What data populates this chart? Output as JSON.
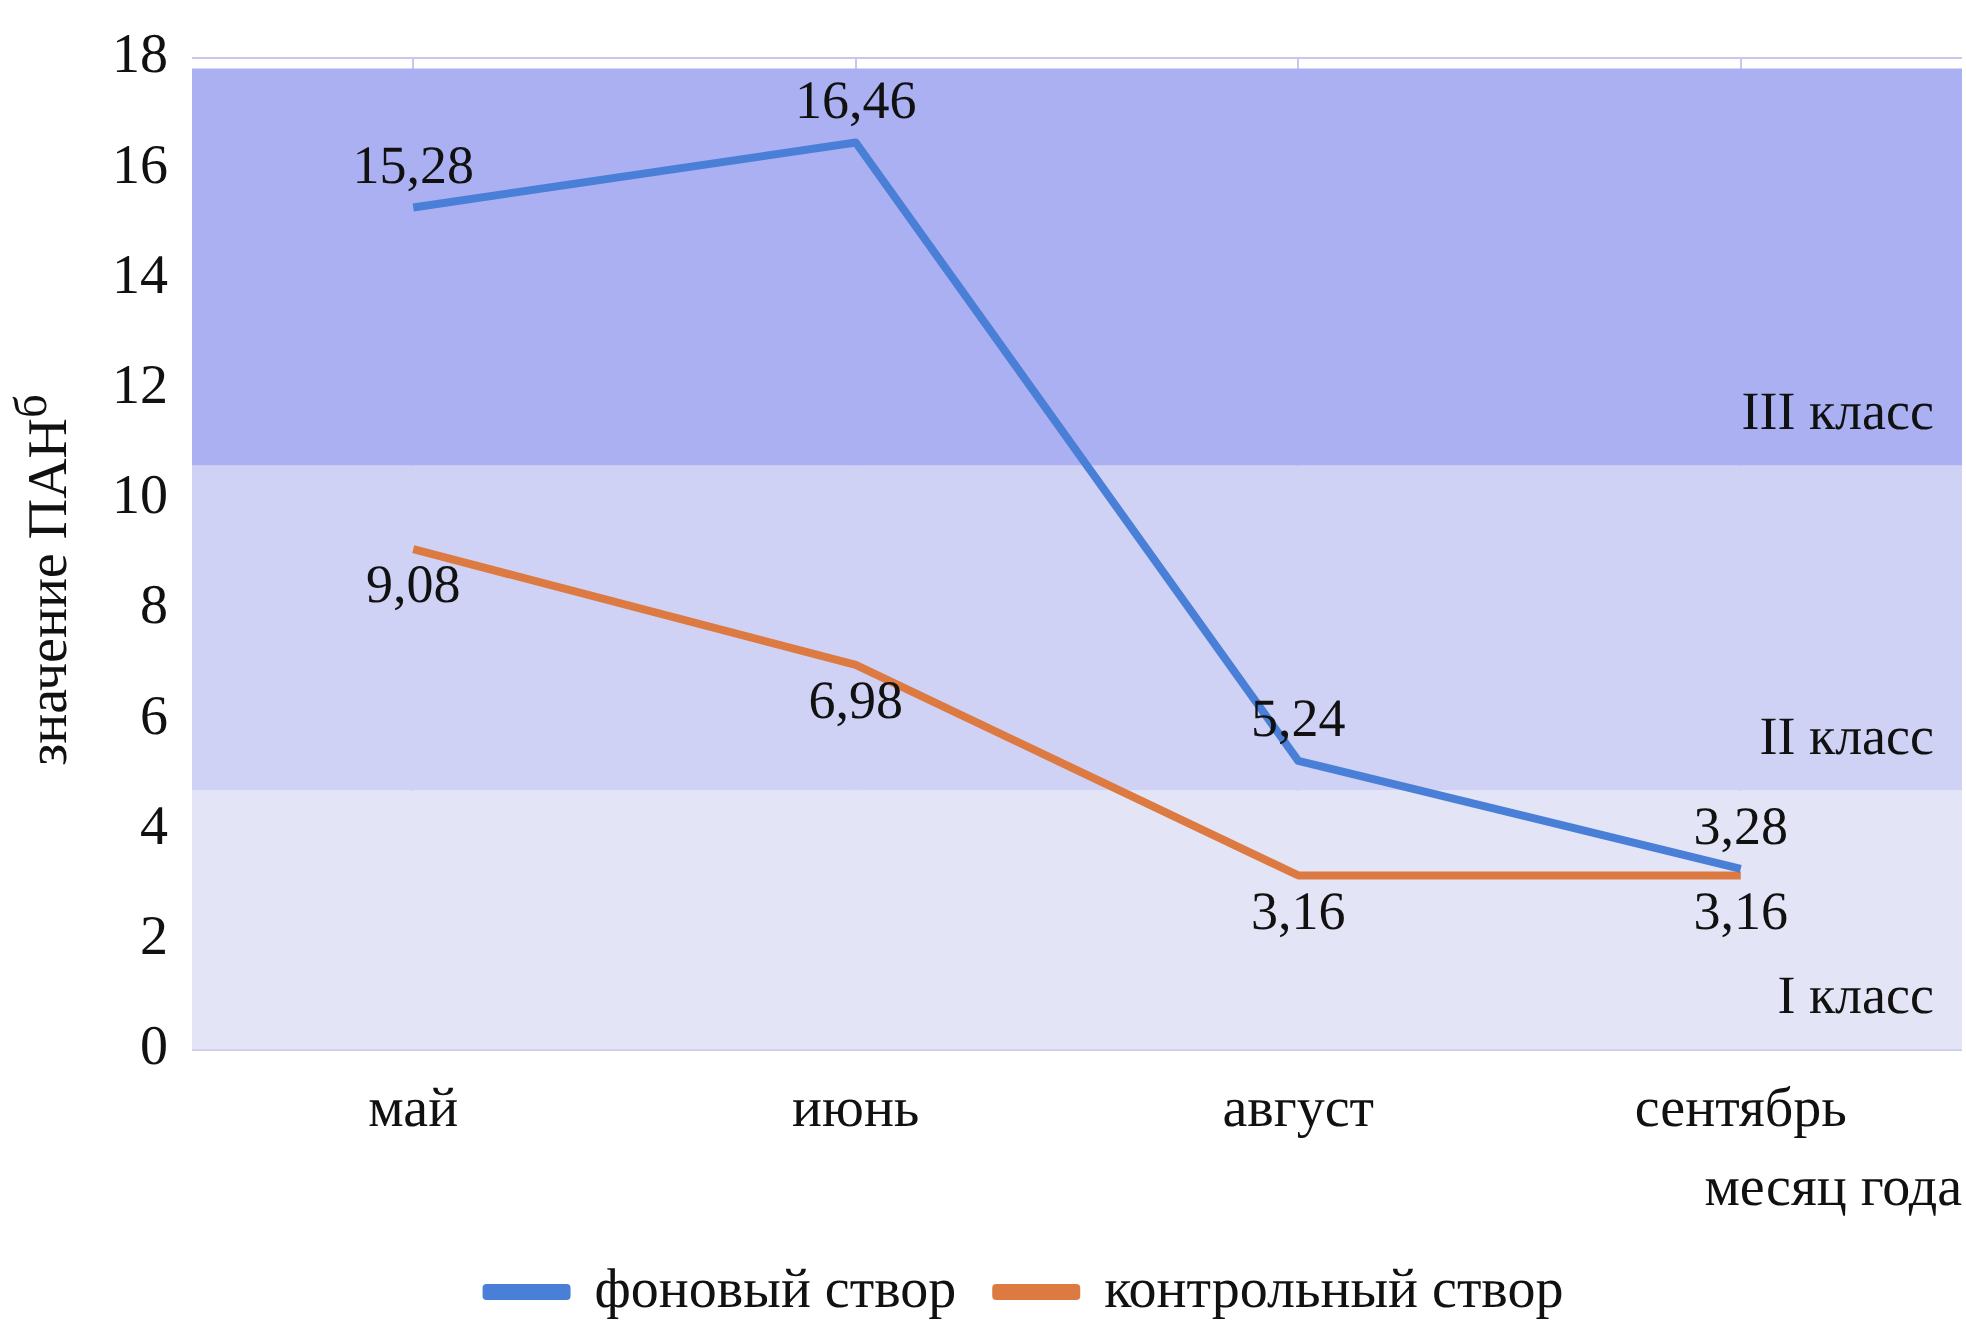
{
  "chart_data": {
    "type": "line",
    "ylabel": "значение ПАН$^{б}$",
    "xlabel": "месяц года",
    "categories": [
      "май",
      "июнь",
      "август",
      "сентябрь"
    ],
    "series": [
      {
        "name": "фоновый створ",
        "color": "#4a7fd8",
        "values": [
          15.28,
          16.46,
          5.24,
          3.28
        ],
        "value_labels": [
          "15,28",
          "16,46",
          "5,24",
          "3,28"
        ]
      },
      {
        "name": "контрольный створ",
        "color": "#dc7a42",
        "values": [
          9.08,
          6.98,
          3.16,
          3.16
        ],
        "value_labels": [
          "9,08",
          "6,98",
          "3,16",
          "3,16"
        ]
      }
    ],
    "ylim": [
      0,
      18
    ],
    "yticks": [
      0,
      2,
      4,
      6,
      8,
      10,
      12,
      14,
      16,
      18
    ],
    "bands": [
      {
        "axis": "y",
        "from": 0,
        "to": 4.7,
        "label": "I класс",
        "color": "#e3e5f6"
      },
      {
        "axis": "y",
        "from": 4.7,
        "to": 10.6,
        "label": "II класс",
        "color": "#cfd2f4"
      },
      {
        "axis": "y",
        "from": 10.6,
        "to": 17.8,
        "label": "III класс",
        "color": "#aab0f1"
      }
    ],
    "grid": true,
    "legend": "bottom",
    "marker": "none",
    "line_style": "solid"
  }
}
